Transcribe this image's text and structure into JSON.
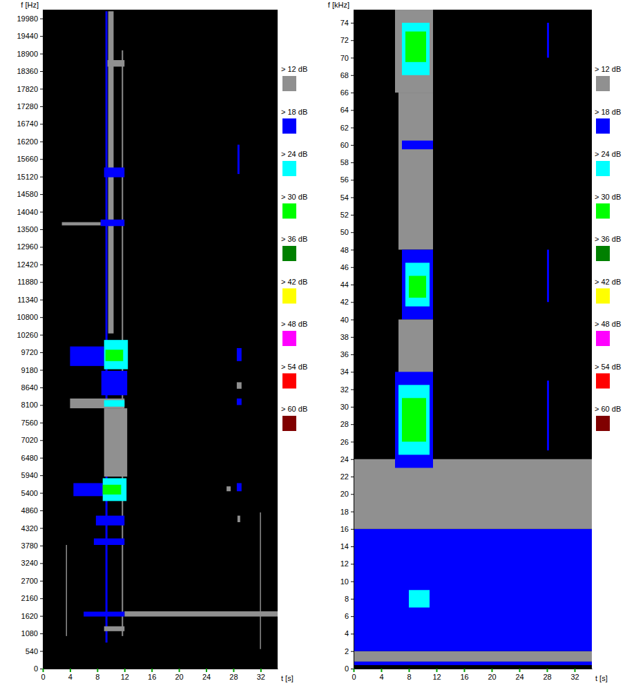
{
  "chart_data": [
    {
      "type": "heatmap",
      "x_label": "t [s]",
      "y_label": "f [Hz]",
      "xlim": [
        0,
        34.5
      ],
      "xticks": [
        0,
        4,
        8,
        12,
        16,
        20,
        24,
        28,
        32
      ],
      "ylim": [
        0,
        20250
      ],
      "yticks": [
        0,
        540,
        1080,
        1620,
        2160,
        2700,
        3240,
        3780,
        4320,
        4860,
        5400,
        5940,
        6480,
        7020,
        7560,
        8100,
        8640,
        9180,
        9720,
        10260,
        10800,
        11340,
        11880,
        12420,
        12960,
        13500,
        14040,
        14580,
        15120,
        15660,
        16200,
        16740,
        17280,
        17820,
        18360,
        18900,
        19440,
        19980
      ],
      "colorbar": {
        "ticks": [
          {
            "value": 12,
            "label": "> 12 dB"
          },
          {
            "value": 18,
            "label": "> 18 dB"
          },
          {
            "value": 24,
            "label": "> 24 dB"
          },
          {
            "value": 30,
            "label": "> 30 dB"
          },
          {
            "value": 36,
            "label": "> 36 dB"
          },
          {
            "value": 42,
            "label": "> 42 dB"
          },
          {
            "value": 48,
            "label": "> 48 dB"
          },
          {
            "value": 54,
            "label": "> 54 dB"
          },
          {
            "value": 60,
            "label": "> 60 dB"
          }
        ],
        "colors": [
          "#909090",
          "#0000ff",
          "#00ffff",
          "#00ff00",
          "#008000",
          "#ffff00",
          "#ff00ff",
          "#ff0000",
          "#800000"
        ]
      },
      "cells": [
        {
          "t": [
            9.2,
            9.5
          ],
          "f": [
            800,
            20200
          ],
          "value": 20
        },
        {
          "t": [
            9.6,
            10.4
          ],
          "f": [
            10300,
            20200
          ],
          "value": 14
        },
        {
          "t": [
            11.6,
            11.8
          ],
          "f": [
            1000,
            19000
          ],
          "value": 14
        },
        {
          "t": [
            3.4,
            3.55
          ],
          "f": [
            1000,
            3800
          ],
          "value": 14
        },
        {
          "t": [
            31.9,
            32.05
          ],
          "f": [
            600,
            4800
          ],
          "value": 14
        },
        {
          "t": [
            12,
            34.5
          ],
          "f": [
            1600,
            1760
          ],
          "value": 14
        },
        {
          "t": [
            9,
            12.4
          ],
          "f": [
            5900,
            8000
          ],
          "value": 14
        },
        {
          "t": [
            4,
            9
          ],
          "f": [
            9300,
            9900
          ],
          "value": 20
        },
        {
          "t": [
            9,
            12.5
          ],
          "f": [
            9200,
            10100
          ],
          "value": 26
        },
        {
          "t": [
            9.2,
            11.8
          ],
          "f": [
            9450,
            9800
          ],
          "value": 32
        },
        {
          "t": [
            4.5,
            8.8
          ],
          "f": [
            5300,
            5700
          ],
          "value": 20
        },
        {
          "t": [
            8.8,
            12.3
          ],
          "f": [
            5150,
            5850
          ],
          "value": 26
        },
        {
          "t": [
            8.8,
            11.5
          ],
          "f": [
            5350,
            5650
          ],
          "value": 32
        },
        {
          "t": [
            4,
            12
          ],
          "f": [
            8000,
            8300
          ],
          "value": 14
        },
        {
          "t": [
            9,
            12
          ],
          "f": [
            8050,
            8250
          ],
          "value": 26
        },
        {
          "t": [
            8.6,
            12.4
          ],
          "f": [
            8400,
            9150
          ],
          "value": 20
        },
        {
          "t": [
            7.8,
            12
          ],
          "f": [
            4400,
            4700
          ],
          "value": 20
        },
        {
          "t": [
            7.5,
            12
          ],
          "f": [
            3800,
            4000
          ],
          "value": 20
        },
        {
          "t": [
            6,
            12
          ],
          "f": [
            1600,
            1750
          ],
          "value": 20
        },
        {
          "t": [
            9,
            12
          ],
          "f": [
            1150,
            1300
          ],
          "value": 14
        },
        {
          "t": [
            2.8,
            8.5
          ],
          "f": [
            13620,
            13720
          ],
          "value": 14
        },
        {
          "t": [
            8.5,
            12
          ],
          "f": [
            13600,
            13800
          ],
          "value": 20
        },
        {
          "t": [
            9,
            12
          ],
          "f": [
            15100,
            15400
          ],
          "value": 20
        },
        {
          "t": [
            9.5,
            12
          ],
          "f": [
            18500,
            18700
          ],
          "value": 14
        },
        {
          "t": [
            28.5,
            29.2
          ],
          "f": [
            9450,
            9850
          ],
          "value": 20
        },
        {
          "t": [
            28.5,
            29.2
          ],
          "f": [
            8600,
            8800
          ],
          "value": 14
        },
        {
          "t": [
            28.5,
            29.2
          ],
          "f": [
            8100,
            8300
          ],
          "value": 20
        },
        {
          "t": [
            28.5,
            29.2
          ],
          "f": [
            5450,
            5700
          ],
          "value": 20
        },
        {
          "t": [
            27,
            27.6
          ],
          "f": [
            5450,
            5600
          ],
          "value": 14
        },
        {
          "t": [
            28.6,
            29
          ],
          "f": [
            4500,
            4700
          ],
          "value": 14
        },
        {
          "t": [
            28.6,
            28.9
          ],
          "f": [
            15200,
            16100
          ],
          "value": 20
        }
      ]
    },
    {
      "type": "heatmap",
      "x_label": "t [s]",
      "y_label": "f [kHz]",
      "xlim": [
        0,
        34.5
      ],
      "xticks": [
        0,
        4,
        8,
        12,
        16,
        20,
        24,
        28,
        32
      ],
      "ylim": [
        0,
        75.5
      ],
      "yticks": [
        0,
        2,
        4,
        6,
        8,
        10,
        12,
        14,
        16,
        18,
        20,
        22,
        24,
        26,
        28,
        30,
        32,
        34,
        36,
        38,
        40,
        42,
        44,
        46,
        48,
        50,
        52,
        54,
        56,
        58,
        60,
        62,
        64,
        66,
        68,
        70,
        72,
        74
      ],
      "colorbar": {
        "ticks": [
          {
            "value": 12,
            "label": "> 12 dB"
          },
          {
            "value": 18,
            "label": "> 18 dB"
          },
          {
            "value": 24,
            "label": "> 24 dB"
          },
          {
            "value": 30,
            "label": "> 30 dB"
          },
          {
            "value": 36,
            "label": "> 36 dB"
          },
          {
            "value": 42,
            "label": "> 42 dB"
          },
          {
            "value": 48,
            "label": "> 48 dB"
          },
          {
            "value": 54,
            "label": "> 54 dB"
          },
          {
            "value": 60,
            "label": "> 60 dB"
          }
        ],
        "colors": [
          "#909090",
          "#0000ff",
          "#00ffff",
          "#00ff00",
          "#008000",
          "#ffff00",
          "#ff00ff",
          "#ff0000",
          "#800000"
        ]
      },
      "cells": [
        {
          "t": [
            0,
            34.5
          ],
          "f": [
            0.8,
            2
          ],
          "value": 14
        },
        {
          "t": [
            0,
            34.5
          ],
          "f": [
            0.4,
            0.8
          ],
          "value": 20
        },
        {
          "t": [
            0,
            34.5
          ],
          "f": [
            2,
            16
          ],
          "value": 20
        },
        {
          "t": [
            8,
            11
          ],
          "f": [
            7,
            9
          ],
          "value": 26
        },
        {
          "t": [
            0,
            34.5
          ],
          "f": [
            16,
            24
          ],
          "value": 14
        },
        {
          "t": [
            6,
            11.5
          ],
          "f": [
            66,
            75.5
          ],
          "value": 14
        },
        {
          "t": [
            7,
            11
          ],
          "f": [
            68,
            74
          ],
          "value": 26
        },
        {
          "t": [
            7.5,
            10.5
          ],
          "f": [
            69.5,
            73
          ],
          "value": 32
        },
        {
          "t": [
            6.5,
            11.5
          ],
          "f": [
            48,
            66
          ],
          "value": 14
        },
        {
          "t": [
            7,
            11.5
          ],
          "f": [
            59.5,
            60.5
          ],
          "value": 20
        },
        {
          "t": [
            7,
            11.5
          ],
          "f": [
            40,
            48
          ],
          "value": 20
        },
        {
          "t": [
            7.5,
            11
          ],
          "f": [
            41.5,
            46.5
          ],
          "value": 26
        },
        {
          "t": [
            8,
            10.5
          ],
          "f": [
            42.5,
            45
          ],
          "value": 32
        },
        {
          "t": [
            6.5,
            11.5
          ],
          "f": [
            33,
            40
          ],
          "value": 14
        },
        {
          "t": [
            6,
            11.5
          ],
          "f": [
            23,
            34
          ],
          "value": 20
        },
        {
          "t": [
            6.5,
            11
          ],
          "f": [
            24.5,
            32.5
          ],
          "value": 26
        },
        {
          "t": [
            7,
            10.5
          ],
          "f": [
            26,
            31
          ],
          "value": 32
        },
        {
          "t": [
            28,
            28.3
          ],
          "f": [
            25,
            33
          ],
          "value": 20
        },
        {
          "t": [
            28,
            28.3
          ],
          "f": [
            42,
            48
          ],
          "value": 20
        },
        {
          "t": [
            28,
            28.3
          ],
          "f": [
            70,
            74
          ],
          "value": 20
        }
      ]
    }
  ]
}
